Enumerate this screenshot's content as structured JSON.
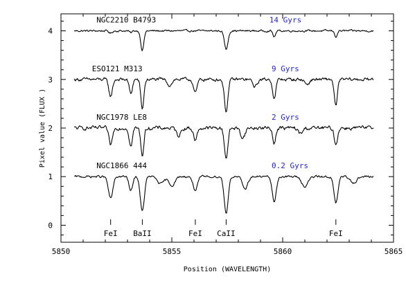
{
  "chart_data": {
    "type": "line",
    "xlabel": "Position (WAVELENGTH)",
    "ylabel": "Pixel value (FLUX )",
    "xlim": [
      5850,
      5865
    ],
    "ylim": [
      -0.35,
      4.35
    ],
    "xticks": [
      5850,
      5855,
      5860,
      5865
    ],
    "yticks": [
      0,
      1,
      2,
      3,
      4
    ],
    "age_color": "#1f1fd6",
    "series": [
      {
        "name": "NGC2210 B4793",
        "age": "14 Gyrs",
        "offset": 4.0,
        "noise": 0.035,
        "lines": [
          [
            5853.67,
            0.4,
            0.07
          ],
          [
            5857.45,
            0.38,
            0.08
          ],
          [
            5859.62,
            0.12,
            0.06
          ],
          [
            5862.4,
            0.12,
            0.06
          ],
          [
            5852.24,
            0.05,
            0.07
          ],
          [
            5853.15,
            0.04,
            0.06
          ]
        ]
      },
      {
        "name": "ESO121 M313",
        "age": "9 Gyrs",
        "offset": 3.0,
        "noise": 0.06,
        "lines": [
          [
            5852.24,
            0.35,
            0.08
          ],
          [
            5853.15,
            0.3,
            0.07
          ],
          [
            5853.67,
            0.6,
            0.07
          ],
          [
            5856.06,
            0.28,
            0.08
          ],
          [
            5857.45,
            0.65,
            0.08
          ],
          [
            5859.62,
            0.4,
            0.07
          ],
          [
            5862.4,
            0.55,
            0.07
          ],
          [
            5854.9,
            0.12,
            0.1
          ],
          [
            5858.75,
            0.15,
            0.1
          ],
          [
            5861.1,
            0.1,
            0.1
          ]
        ]
      },
      {
        "name": "NGC1978 LE8",
        "age": "2 Gyrs",
        "offset": 2.0,
        "noise": 0.07,
        "lines": [
          [
            5852.24,
            0.35,
            0.08
          ],
          [
            5853.15,
            0.38,
            0.07
          ],
          [
            5853.67,
            0.55,
            0.07
          ],
          [
            5856.06,
            0.25,
            0.08
          ],
          [
            5857.45,
            0.6,
            0.08
          ],
          [
            5859.62,
            0.3,
            0.07
          ],
          [
            5862.4,
            0.35,
            0.07
          ],
          [
            5855.3,
            0.15,
            0.1
          ],
          [
            5858.2,
            0.2,
            0.1
          ],
          [
            5860.8,
            0.12,
            0.1
          ]
        ]
      },
      {
        "name": "NGC1866 444",
        "age": "0.2 Gyrs",
        "offset": 1.0,
        "noise": 0.04,
        "lines": [
          [
            5852.24,
            0.45,
            0.1
          ],
          [
            5853.15,
            0.3,
            0.08
          ],
          [
            5853.67,
            0.72,
            0.09
          ],
          [
            5856.06,
            0.28,
            0.1
          ],
          [
            5857.45,
            0.75,
            0.09
          ],
          [
            5859.62,
            0.52,
            0.09
          ],
          [
            5862.4,
            0.55,
            0.09
          ],
          [
            5854.5,
            0.15,
            0.14
          ],
          [
            5855.0,
            0.18,
            0.14
          ],
          [
            5858.3,
            0.25,
            0.12
          ],
          [
            5861.0,
            0.2,
            0.14
          ],
          [
            5863.2,
            0.12,
            0.14
          ]
        ]
      }
    ],
    "annotations": [
      {
        "label": "FeI",
        "x": 5852.24
      },
      {
        "label": "BaII",
        "x": 5853.67
      },
      {
        "label": "FeI",
        "x": 5856.06
      },
      {
        "label": "CaII",
        "x": 5857.45
      },
      {
        "label": "FeI",
        "x": 5862.4
      }
    ]
  }
}
